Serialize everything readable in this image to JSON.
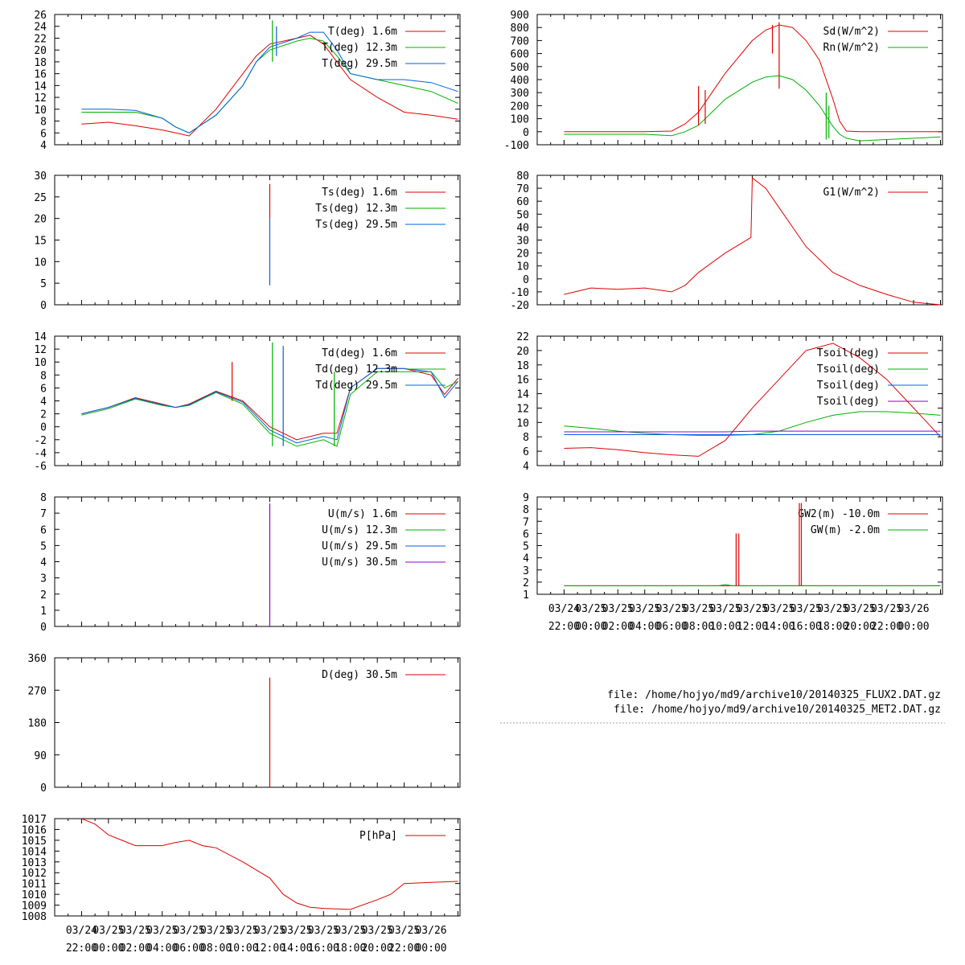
{
  "colors": {
    "red": "#e00000",
    "green": "#00b000",
    "blue": "#0060e0",
    "purple": "#9000d0"
  },
  "time_ticks": {
    "dates": [
      "03/24",
      "03/25",
      "03/25",
      "03/25",
      "03/25",
      "03/25",
      "03/25",
      "03/25",
      "03/25",
      "03/25",
      "03/25",
      "03/25",
      "03/25",
      "03/26"
    ],
    "times": [
      "22:00",
      "00:00",
      "02:00",
      "04:00",
      "06:00",
      "08:00",
      "10:00",
      "12:00",
      "14:00",
      "16:00",
      "18:00",
      "20:00",
      "22:00",
      "00:00"
    ]
  },
  "files": [
    "file: /home/hojyo/md9/archive10/20140325_FLUX2.DAT.gz",
    "file: /home/hojyo/md9/archive10/20140325_MET2.DAT.gz"
  ],
  "chart_data": [
    {
      "id": "t",
      "type": "line",
      "ylim": [
        4,
        26
      ],
      "yticks": [
        "4",
        "6",
        "8",
        "10",
        "12",
        "14",
        "16",
        "18",
        "20",
        "22",
        "24",
        "26"
      ],
      "legend": [
        "T(deg)  1.6m",
        "T(deg) 12.3m",
        "T(deg) 29.5m"
      ],
      "x": [
        -2,
        0,
        2,
        4,
        5,
        6,
        8,
        10,
        11,
        12,
        14,
        15,
        16,
        17,
        18,
        20,
        22,
        24,
        26
      ],
      "series": [
        {
          "color": "red",
          "values": [
            7.5,
            7.8,
            7.2,
            6.5,
            6,
            5.5,
            10,
            16,
            19,
            21,
            22,
            22.5,
            21,
            18,
            15,
            12,
            9.5,
            9,
            8.3
          ]
        },
        {
          "color": "green",
          "values": [
            9.5,
            9.5,
            9.5,
            8.5,
            7,
            6,
            9,
            14,
            18,
            20,
            21.5,
            22,
            21.5,
            19,
            16,
            15,
            14,
            13,
            11
          ]
        },
        {
          "color": "blue",
          "values": [
            10,
            10,
            9.8,
            8.5,
            7,
            6,
            9,
            14,
            18,
            20.5,
            22,
            23,
            23,
            20,
            16,
            15,
            15,
            14.5,
            13
          ]
        }
      ]
    },
    {
      "id": "sd",
      "type": "line",
      "ylim": [
        -100,
        900
      ],
      "yticks": [
        "-100",
        "0",
        "100",
        "200",
        "300",
        "400",
        "500",
        "600",
        "700",
        "800",
        "900"
      ],
      "legend": [
        "Sd(W/m^2)",
        "Rn(W/m^2)"
      ],
      "x": [
        -2,
        4,
        6,
        7,
        8,
        9,
        10,
        12,
        13,
        14,
        15,
        16,
        17,
        18,
        18.5,
        19,
        20,
        22,
        26
      ],
      "series": [
        {
          "color": "red",
          "values": [
            0,
            0,
            5,
            60,
            150,
            300,
            450,
            700,
            780,
            820,
            800,
            700,
            550,
            250,
            80,
            5,
            0,
            0,
            0
          ]
        },
        {
          "color": "green",
          "values": [
            -20,
            -20,
            -30,
            0,
            50,
            150,
            250,
            380,
            420,
            430,
            400,
            320,
            200,
            40,
            -20,
            -50,
            -70,
            -60,
            -40
          ]
        }
      ]
    },
    {
      "id": "ts",
      "type": "line",
      "ylim": [
        0,
        30
      ],
      "yticks": [
        "0",
        "5",
        "10",
        "15",
        "20",
        "25",
        "30"
      ],
      "legend": [
        "Ts(deg)  1.6m",
        "Ts(deg) 12.3m",
        "Ts(deg) 29.5m"
      ],
      "x": [],
      "series": [
        {
          "color": "red",
          "values": []
        },
        {
          "color": "green",
          "values": []
        },
        {
          "color": "blue",
          "values": []
        }
      ]
    },
    {
      "id": "g1",
      "type": "line",
      "ylim": [
        -20,
        80
      ],
      "yticks": [
        "-20",
        "-10",
        "0",
        "10",
        "20",
        "30",
        "40",
        "50",
        "60",
        "70",
        "80"
      ],
      "legend": [
        "G1(W/m^2)"
      ],
      "x": [
        -2,
        0,
        2,
        4,
        6,
        7,
        8,
        10,
        11.9,
        12,
        13,
        14,
        16,
        18,
        20,
        22,
        24,
        26
      ],
      "series": [
        {
          "color": "red",
          "values": [
            -12,
            -7,
            -8,
            -7,
            -10,
            -5,
            5,
            20,
            32,
            78,
            70,
            55,
            25,
            5,
            -5,
            -12,
            -18,
            -20
          ]
        }
      ]
    },
    {
      "id": "td",
      "type": "line",
      "ylim": [
        -6,
        14
      ],
      "yticks": [
        "-6",
        "-4",
        "-2",
        "0",
        "2",
        "4",
        "6",
        "8",
        "10",
        "12",
        "14"
      ],
      "legend": [
        "Td(deg)  1.6m",
        "Td(deg) 12.3m",
        "Td(deg) 29.5m"
      ],
      "x": [
        -2,
        0,
        2,
        4,
        5,
        6,
        8,
        10,
        12,
        14,
        16,
        17,
        18,
        20,
        22,
        24,
        25,
        26
      ],
      "series": [
        {
          "color": "red",
          "values": [
            2,
            3,
            4.5,
            3.5,
            3,
            3.5,
            5.5,
            4,
            0,
            -2,
            -1,
            -1,
            6,
            9,
            9,
            8,
            5,
            7.5
          ]
        },
        {
          "color": "green",
          "values": [
            1.8,
            2.8,
            4.3,
            3.3,
            3,
            3.3,
            5.3,
            3.5,
            -1,
            -3,
            -2,
            -3,
            5,
            8.5,
            8.5,
            8.5,
            6,
            7
          ]
        },
        {
          "color": "blue",
          "values": [
            2,
            3,
            4.4,
            3.4,
            3,
            3.4,
            5.4,
            3.8,
            -0.5,
            -2.5,
            -1.5,
            -2,
            6,
            9,
            9,
            8.5,
            4.5,
            7
          ]
        }
      ]
    },
    {
      "id": "tsoil",
      "type": "line",
      "ylim": [
        4,
        22
      ],
      "yticks": [
        "4",
        "6",
        "8",
        "10",
        "12",
        "14",
        "16",
        "18",
        "20",
        "22"
      ],
      "legend": [
        "Tsoil(deg)",
        "Tsoil(deg)",
        "Tsoil(deg)",
        "Tsoil(deg)"
      ],
      "x": [
        -2,
        0,
        2,
        4,
        6,
        8,
        10,
        12,
        14,
        16,
        18,
        20,
        22,
        24,
        26
      ],
      "series": [
        {
          "color": "red",
          "values": [
            6.4,
            6.5,
            6.2,
            5.8,
            5.5,
            5.3,
            7.5,
            12,
            16,
            20,
            21,
            19,
            16,
            12,
            8
          ]
        },
        {
          "color": "green",
          "values": [
            9.5,
            9.2,
            8.8,
            8.5,
            8.3,
            8.2,
            8.2,
            8.3,
            8.8,
            10,
            11,
            11.5,
            11.5,
            11.3,
            11
          ]
        },
        {
          "color": "blue",
          "values": [
            8.3,
            8.3,
            8.3,
            8.3,
            8.3,
            8.3,
            8.3,
            8.3,
            8.3,
            8.3,
            8.3,
            8.3,
            8.3,
            8.3,
            8.3
          ]
        },
        {
          "color": "purple",
          "values": [
            8.7,
            8.7,
            8.7,
            8.7,
            8.7,
            8.7,
            8.7,
            8.8,
            8.8,
            8.8,
            8.8,
            8.8,
            8.8,
            8.8,
            8.8
          ]
        }
      ]
    },
    {
      "id": "u",
      "type": "line",
      "ylim": [
        0,
        8
      ],
      "yticks": [
        "0",
        "1",
        "2",
        "3",
        "4",
        "5",
        "6",
        "7",
        "8"
      ],
      "legend": [
        "U(m/s)  1.6m",
        "U(m/s) 12.3m",
        "U(m/s) 29.5m",
        "U(m/s) 30.5m"
      ],
      "x": [],
      "series": [
        {
          "color": "red",
          "values": []
        },
        {
          "color": "green",
          "values": []
        },
        {
          "color": "blue",
          "values": []
        },
        {
          "color": "purple",
          "values": []
        }
      ]
    },
    {
      "id": "gw",
      "type": "line",
      "ylim": [
        1,
        9
      ],
      "yticks": [
        "1",
        "2",
        "3",
        "4",
        "5",
        "6",
        "7",
        "8",
        "9"
      ],
      "legend": [
        "GW2(m) -10.0m",
        "GW(m) -2.0m"
      ],
      "x": [
        -2,
        9.5,
        10,
        10.5,
        11,
        12,
        14,
        16,
        18,
        20,
        22,
        24,
        26
      ],
      "series": [
        {
          "color": "red",
          "values": [
            1.7,
            1.7,
            1.7,
            1.7,
            1.7,
            1.7,
            1.7,
            1.7,
            1.7,
            1.7,
            1.7,
            1.7,
            1.7
          ]
        },
        {
          "color": "green",
          "values": [
            1.7,
            1.7,
            1.8,
            1.7,
            1.7,
            1.7,
            1.7,
            1.7,
            1.7,
            1.7,
            1.7,
            1.7,
            1.7
          ]
        }
      ]
    },
    {
      "id": "d",
      "type": "line",
      "ylim": [
        0,
        360
      ],
      "yticks": [
        "0",
        "90",
        "180",
        "270",
        "360"
      ],
      "legend": [
        "D(deg)   30.5m"
      ],
      "x": [],
      "series": [
        {
          "color": "red",
          "values": []
        }
      ]
    },
    {
      "id": "p",
      "type": "line",
      "ylim": [
        1008,
        1017
      ],
      "yticks": [
        "1008",
        "1009",
        "1010",
        "1011",
        "1012",
        "1013",
        "1014",
        "1015",
        "1016",
        "1017"
      ],
      "legend": [
        "P[hPa]"
      ],
      "x": [
        -2,
        -1,
        0,
        1,
        2,
        4,
        5,
        6,
        7,
        8,
        10,
        12,
        13,
        14,
        15,
        16,
        18,
        20,
        21,
        22,
        24,
        26
      ],
      "series": [
        {
          "color": "red",
          "values": [
            1017,
            1016.5,
            1015.5,
            1015,
            1014.5,
            1014.5,
            1014.8,
            1015,
            1014.5,
            1014.3,
            1013,
            1011.5,
            1010,
            1009.2,
            1008.8,
            1008.7,
            1008.6,
            1009.5,
            1010,
            1011,
            1011.1,
            1011.2
          ]
        }
      ]
    }
  ],
  "spikes": [
    {
      "chart": "t",
      "x": 12.2,
      "y0": 18,
      "y1": 25,
      "color": "green"
    },
    {
      "chart": "t",
      "x": 12.5,
      "y0": 19,
      "y1": 24,
      "color": "blue"
    },
    {
      "chart": "sd",
      "x": 14,
      "y0": 330,
      "y1": 840,
      "color": "red"
    },
    {
      "chart": "sd",
      "x": 13.5,
      "y0": 600,
      "y1": 820,
      "color": "red"
    },
    {
      "chart": "sd",
      "x": 8,
      "y0": 50,
      "y1": 350,
      "color": "red"
    },
    {
      "chart": "sd",
      "x": 8.5,
      "y0": 60,
      "y1": 320,
      "color": "red"
    },
    {
      "chart": "sd",
      "x": 17.5,
      "y0": -60,
      "y1": 300,
      "color": "green"
    },
    {
      "chart": "sd",
      "x": 17.7,
      "y0": -50,
      "y1": 200,
      "color": "green"
    },
    {
      "chart": "ts",
      "x": 12.0,
      "y0": 20,
      "y1": 28,
      "color": "red"
    },
    {
      "chart": "ts",
      "x": 12.0,
      "y0": 4.5,
      "y1": 20,
      "color": "blue"
    },
    {
      "chart": "td",
      "x": 9.2,
      "y0": 4,
      "y1": 10,
      "color": "red"
    },
    {
      "chart": "td",
      "x": 12.2,
      "y0": -3,
      "y1": 13,
      "color": "green"
    },
    {
      "chart": "td",
      "x": 13.0,
      "y0": -3,
      "y1": 12.5,
      "color": "blue"
    },
    {
      "chart": "td",
      "x": 16.8,
      "y0": -3,
      "y1": 8.5,
      "color": "green"
    },
    {
      "chart": "u",
      "x": 12.0,
      "y0": 0,
      "y1": 7.6,
      "color": "purple"
    },
    {
      "chart": "gw",
      "x": 10.8,
      "y0": 1.7,
      "y1": 6,
      "color": "red"
    },
    {
      "chart": "gw",
      "x": 11.0,
      "y0": 1.7,
      "y1": 6,
      "color": "red"
    },
    {
      "chart": "gw",
      "x": 15.5,
      "y0": 1.7,
      "y1": 8.5,
      "color": "red"
    },
    {
      "chart": "gw",
      "x": 15.65,
      "y0": 1.7,
      "y1": 8.5,
      "color": "red"
    },
    {
      "chart": "d",
      "x": 12.0,
      "y0": 0,
      "y1": 305,
      "color": "red"
    }
  ]
}
